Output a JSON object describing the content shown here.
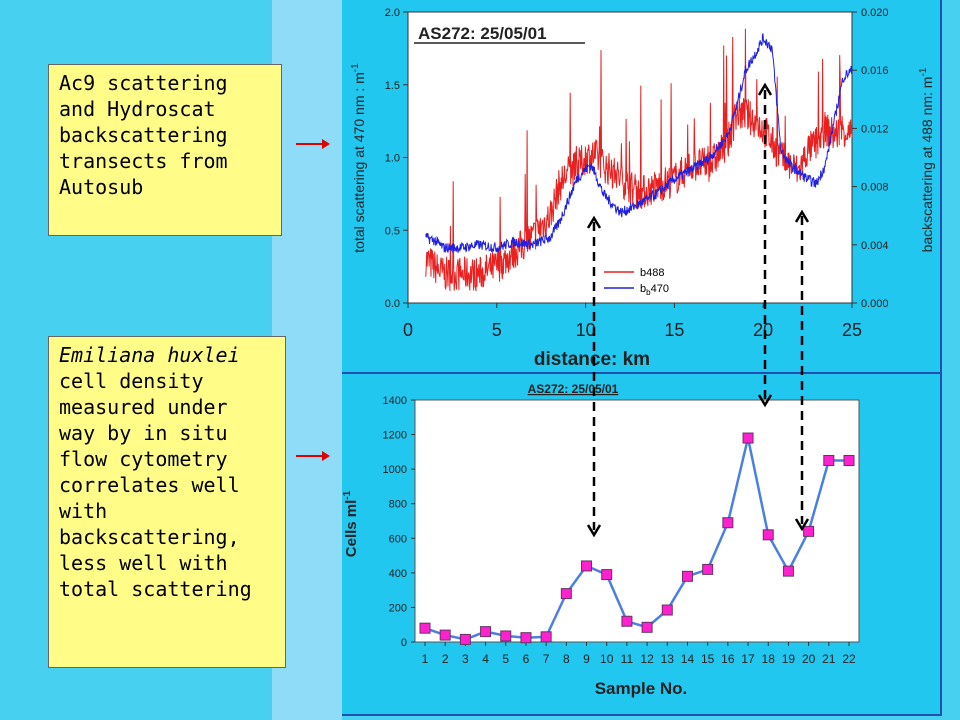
{
  "annotations": {
    "top_note": "Ac9 scattering and Hydroscat backscattering transects from Autosub",
    "bottom_note_italic": "Emiliana huxlei",
    "bottom_note_rest": "cell density measured under way by in situ flow cytometry correlates well with backscattering, less well with total scattering"
  },
  "chart_data": [
    {
      "type": "line",
      "title": "AS272: 25/05/01",
      "xlabel": "distance: km",
      "ylabel_left": "total scattering at 470 nm : m",
      "ylabel_left_sup": "-1",
      "ylabel_right": "backscattering at 488 nm: m",
      "ylabel_right_sup": "-1",
      "xlim": [
        0,
        25
      ],
      "ylim_left": [
        0.0,
        2.0
      ],
      "ylim_right": [
        0.0,
        0.02
      ],
      "x_ticks": [
        "0",
        "5",
        "10",
        "15",
        "20",
        "25"
      ],
      "y_left_ticks": [
        "0.0",
        "0.5",
        "1.0",
        "1.5",
        "2.0"
      ],
      "y_right_ticks": [
        "0.000",
        "0.004",
        "0.008",
        "0.012",
        "0.016",
        "0.020"
      ],
      "legend": [
        {
          "label": "b488",
          "color": "#e82020"
        },
        {
          "label": "b",
          "sub": "b",
          "suffix": "470",
          "color": "#2020e0"
        }
      ],
      "legend_position": "bottom-center",
      "series": [
        {
          "color": "#e82020",
          "axis": "left",
          "x": [
            1.0,
            1.5,
            2.0,
            3.0,
            4.0,
            5.0,
            6.0,
            7.0,
            8.0,
            8.5,
            9.0,
            9.5,
            10.0,
            10.5,
            11.0,
            12.0,
            13.0,
            14.0,
            15.0,
            16.0,
            17.0,
            18.0,
            18.5,
            19.0,
            19.5,
            20.0,
            20.5,
            21.0,
            21.5,
            22.0,
            22.5,
            23.0,
            23.5,
            24.0,
            24.5,
            25.0
          ],
          "y": [
            0.3,
            0.25,
            0.2,
            0.2,
            0.2,
            0.25,
            0.35,
            0.45,
            0.6,
            0.8,
            0.9,
            0.93,
            1.0,
            1.02,
            0.95,
            0.85,
            0.75,
            0.8,
            0.85,
            0.95,
            0.95,
            1.1,
            1.3,
            1.3,
            1.25,
            1.2,
            1.1,
            1.0,
            0.95,
            0.9,
            1.05,
            1.1,
            1.2,
            1.15,
            1.2,
            1.15
          ]
        },
        {
          "color": "#2020e0",
          "axis": "right",
          "x": [
            1.0,
            1.5,
            2.0,
            3.0,
            4.0,
            5.0,
            6.0,
            7.0,
            8.0,
            8.5,
            9.0,
            9.5,
            10.0,
            10.3,
            10.5,
            11.0,
            11.5,
            12.0,
            13.0,
            14.0,
            15.0,
            16.0,
            17.0,
            18.0,
            18.5,
            19.0,
            19.5,
            20.0,
            20.5,
            21.0,
            21.5,
            22.0,
            22.5,
            23.0,
            23.5,
            24.0,
            24.5,
            25.0
          ],
          "y": [
            0.0045,
            0.0043,
            0.0038,
            0.0038,
            0.004,
            0.0038,
            0.0042,
            0.004,
            0.0045,
            0.0055,
            0.007,
            0.0085,
            0.0092,
            0.0095,
            0.009,
            0.0075,
            0.0068,
            0.0062,
            0.0068,
            0.0075,
            0.0085,
            0.0092,
            0.01,
            0.0115,
            0.0135,
            0.016,
            0.017,
            0.0182,
            0.0175,
            0.0105,
            0.0095,
            0.009,
            0.0085,
            0.0082,
            0.0095,
            0.0125,
            0.0155,
            0.016
          ]
        }
      ]
    },
    {
      "type": "line",
      "title": "AS272: 25/05/01",
      "xlabel": "Sample No.",
      "ylabel": "Cells ml",
      "ylabel_sup": "-1",
      "ylim": [
        0,
        1400
      ],
      "y_ticks": [
        "0",
        "200",
        "400",
        "600",
        "800",
        "1000",
        "1200",
        "1400"
      ],
      "categories": [
        "1",
        "2",
        "3",
        "4",
        "5",
        "6",
        "7",
        "8",
        "9",
        "10",
        "11",
        "12",
        "13",
        "14",
        "15",
        "16",
        "17",
        "18",
        "19",
        "20",
        "21",
        "22"
      ],
      "values": [
        80,
        40,
        15,
        60,
        35,
        25,
        30,
        280,
        440,
        390,
        120,
        85,
        185,
        380,
        420,
        690,
        1180,
        620,
        410,
        640,
        1050,
        1050
      ],
      "line_color": "#4a80e0",
      "marker_color": "#ff20d0"
    }
  ]
}
